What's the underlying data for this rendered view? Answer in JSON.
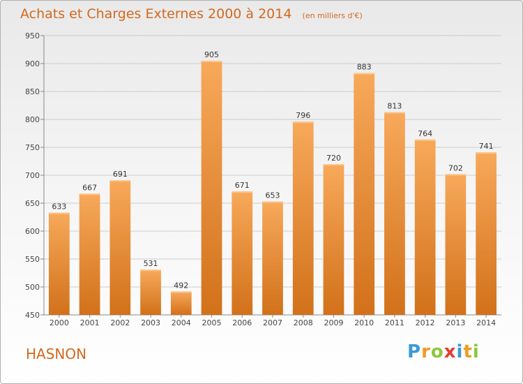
{
  "title": "Achats et Charges Externes 2000 à 2014",
  "subtitle": "(en milliers d'€)",
  "commune": "HASNON",
  "logo": {
    "text": "Proxiti",
    "letters": [
      "P",
      "r",
      "o",
      "x",
      "i",
      "t",
      "i"
    ],
    "colors": [
      "#3a9bd5",
      "#f29a1f",
      "#8dc63f",
      "#e63c2f",
      "#3a9bd5",
      "#f29a1f",
      "#8dc63f"
    ]
  },
  "colors": {
    "bar": "#ee8a2c",
    "bar_light": "#f7a95a",
    "bar_dark": "#cf6e12",
    "grid": "#cccccc",
    "accent": "#d2691e"
  },
  "chart_data": {
    "type": "bar",
    "categories": [
      "2000",
      "2001",
      "2002",
      "2003",
      "2004",
      "2005",
      "2006",
      "2007",
      "2008",
      "2009",
      "2010",
      "2011",
      "2012",
      "2013",
      "2014"
    ],
    "values": [
      633,
      667,
      691,
      531,
      492,
      905,
      671,
      653,
      796,
      720,
      883,
      813,
      764,
      702,
      741
    ],
    "yticks": [
      450,
      500,
      550,
      600,
      650,
      700,
      750,
      800,
      850,
      900,
      950
    ],
    "ylim": [
      450,
      950
    ],
    "grid": true,
    "title": "Achats et Charges Externes 2000 à 2014",
    "subtitle": "(en milliers d'€)"
  }
}
